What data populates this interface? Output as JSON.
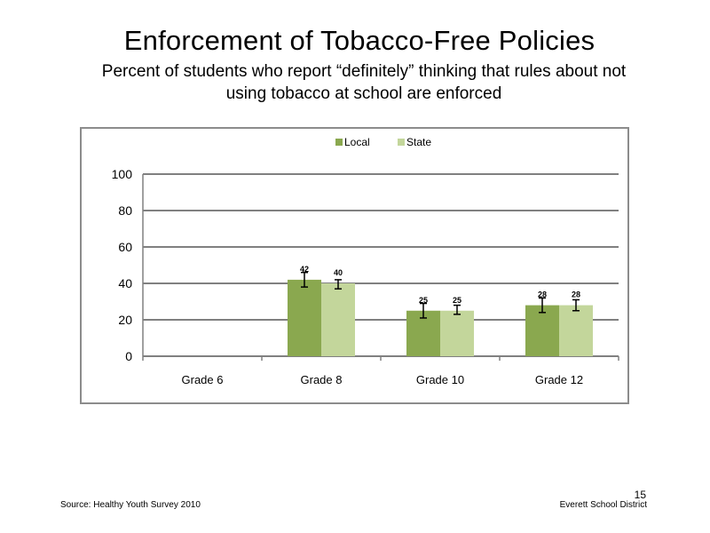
{
  "slide": {
    "title": "Enforcement of Tobacco-Free Policies",
    "subtitle": "Percent of students who report “definitely” thinking that rules about not using tobacco at school are enforced",
    "source": "Source: Healthy Youth Survey 2010",
    "district": "Everett School District",
    "page_number": "15"
  },
  "chart_data": {
    "type": "bar",
    "title": "",
    "xlabel": "",
    "ylabel": "",
    "categories": [
      "Grade 6",
      "Grade 8",
      "Grade 10",
      "Grade 12"
    ],
    "ylim": [
      0,
      100
    ],
    "yticks": [
      0,
      20,
      40,
      60,
      80,
      100
    ],
    "grid": true,
    "legend_position": "top-center",
    "series": [
      {
        "name": "Local",
        "color": "#8aa84f",
        "values": [
          null,
          42,
          25,
          28
        ],
        "labels": [
          "",
          "42",
          "25",
          "28"
        ],
        "error_low": [
          null,
          38,
          21,
          24
        ],
        "error_high": [
          null,
          46,
          29,
          32
        ]
      },
      {
        "name": "State",
        "color": "#c3d69b",
        "values": [
          null,
          40,
          25,
          28
        ],
        "labels": [
          "",
          "40",
          "25",
          "28"
        ],
        "error_low": [
          null,
          37,
          23,
          25
        ],
        "error_high": [
          null,
          42,
          28,
          31
        ]
      }
    ]
  }
}
